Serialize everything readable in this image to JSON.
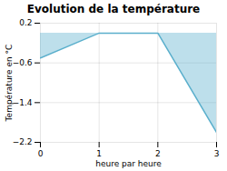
{
  "chart_data": {
    "type": "area",
    "title": "Evolution de la température",
    "xlabel": "heure par heure",
    "ylabel": "Température en °C",
    "x": [
      0,
      1,
      2,
      3
    ],
    "values": [
      -0.5,
      0.0,
      0.0,
      -2.0
    ],
    "color": "#5aafcc",
    "xlim": [
      0,
      3
    ],
    "ylim": [
      -2.2,
      0.2
    ],
    "xticks": [
      0,
      1,
      2,
      3
    ],
    "yticks": [
      -2.2,
      -1.4,
      -0.6,
      0.2
    ],
    "grid": true
  }
}
